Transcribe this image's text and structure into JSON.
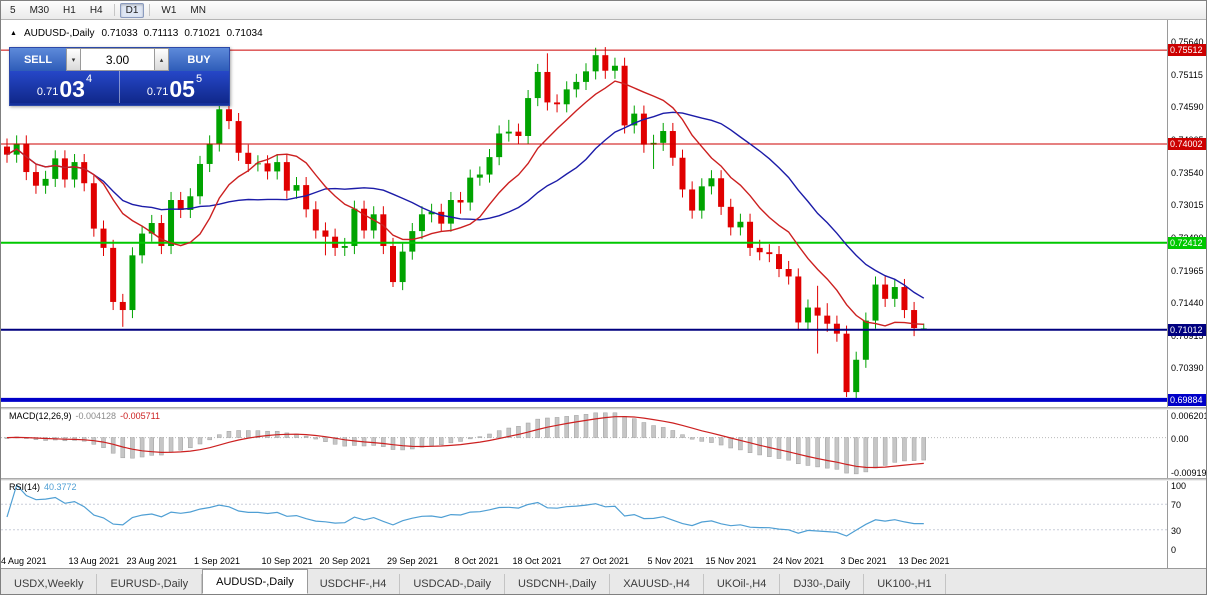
{
  "colors": {
    "bull": "#00a300",
    "bear": "#e00000",
    "ma_fast": "#cc2020",
    "ma_slow": "#1c1ca8",
    "macd_hist": "#c6c6c6",
    "macd_hist_border": "#a0a0a0",
    "macd_signal": "#cc2020",
    "rsi": "#4f9fd4",
    "guide": "#c9ced9"
  },
  "toolbar": {
    "items": [
      {
        "label": "5",
        "active": false,
        "divider_after": false
      },
      {
        "label": "M30",
        "active": false,
        "divider_after": false
      },
      {
        "label": "H1",
        "active": false,
        "divider_after": false
      },
      {
        "label": "H4",
        "active": false,
        "divider_after": true
      },
      {
        "label": "D1",
        "active": true,
        "divider_after": true
      },
      {
        "label": "W1",
        "active": false,
        "divider_after": false
      },
      {
        "label": "MN",
        "active": false,
        "divider_after": false
      }
    ]
  },
  "chart_header": {
    "icon": "▲",
    "title": "AUDUSD-,Daily",
    "open": "0.71033",
    "high": "0.71113",
    "low": "0.71021",
    "close": "0.71034"
  },
  "trade_widget": {
    "sell_label": "SELL",
    "buy_label": "BUY",
    "volume": "3.00",
    "volume_down_icon": "▾",
    "volume_up_icon": "▴",
    "sell_price": {
      "prefix": "0.71",
      "big": "03",
      "sup": "4"
    },
    "buy_price": {
      "prefix": "0.71",
      "big": "05",
      "sup": "5"
    }
  },
  "price_axis": {
    "labels": [
      {
        "text": "0.75640",
        "value": 0.7564
      },
      {
        "text": "0.75115",
        "value": 0.75115
      },
      {
        "text": "0.74590",
        "value": 0.7459
      },
      {
        "text": "0.74065",
        "value": 0.74065
      },
      {
        "text": "0.73540",
        "value": 0.7354
      },
      {
        "text": "0.73015",
        "value": 0.73015
      },
      {
        "text": "0.72490",
        "value": 0.7249
      },
      {
        "text": "0.71965",
        "value": 0.71965
      },
      {
        "text": "0.71440",
        "value": 0.7144
      },
      {
        "text": "0.70915",
        "value": 0.70915
      },
      {
        "text": "0.70390",
        "value": 0.7039
      },
      {
        "text": "0.69865",
        "value": 0.69865
      }
    ]
  },
  "levels": [
    {
      "value": 0.75512,
      "label": "0.75512",
      "color": "#cc0000",
      "line_width": 1
    },
    {
      "value": 0.74002,
      "label": "0.74002",
      "color": "#cc0000",
      "line_width": 1
    },
    {
      "value": 0.72412,
      "label": "0.72412",
      "color": "#00c800",
      "line_width": 2
    },
    {
      "value": 0.71012,
      "label": "0.71012",
      "color": "#00007f",
      "line_width": 2
    },
    {
      "value": 0.69884,
      "label": "0.69884",
      "color": "#0000c8",
      "line_width": 4
    }
  ],
  "macd_panel": {
    "name": "MACD(12,26,9)",
    "main_value": "-0.004128",
    "signal_value": "-0.005711",
    "fast": 12,
    "slow": 26,
    "signal": 9,
    "scale_max": 0.0062,
    "scale_min": -0.0092,
    "axis_labels": [
      {
        "text": "0.006201",
        "value": 0.006201
      },
      {
        "text": "0.00",
        "value": 0
      },
      {
        "text": "-0.00919",
        "value": -0.00919
      }
    ]
  },
  "rsi_panel": {
    "name": "RSI(14)",
    "value": "40.3772",
    "period": 14,
    "guides": [
      70,
      30
    ],
    "axis_labels": [
      {
        "text": "100",
        "value": 100
      },
      {
        "text": "70",
        "value": 70
      },
      {
        "text": "30",
        "value": 30
      },
      {
        "text": "0",
        "value": 0
      }
    ]
  },
  "x_axis": {
    "labels": [
      {
        "text": "4 Aug 2021",
        "index": 0
      },
      {
        "text": "13 Aug 2021",
        "index": 7
      },
      {
        "text": "23 Aug 2021",
        "index": 13
      },
      {
        "text": "1 Sep 2021",
        "index": 20
      },
      {
        "text": "10 Sep 2021",
        "index": 27
      },
      {
        "text": "20 Sep 2021",
        "index": 33
      },
      {
        "text": "29 Sep 2021",
        "index": 40
      },
      {
        "text": "8 Oct 2021",
        "index": 47
      },
      {
        "text": "18 Oct 2021",
        "index": 53
      },
      {
        "text": "27 Oct 2021",
        "index": 60
      },
      {
        "text": "5 Nov 2021",
        "index": 67
      },
      {
        "text": "15 Nov 2021",
        "index": 73
      },
      {
        "text": "24 Nov 2021",
        "index": 80
      },
      {
        "text": "3 Dec 2021",
        "index": 87
      },
      {
        "text": "13 Dec 2021",
        "index": 93
      }
    ]
  },
  "tabs": {
    "items": [
      "USDX,Weekly",
      "EURUSD-,Daily",
      "AUDUSD-,Daily",
      "USDCHF-,H4",
      "USDCAD-,Daily",
      "USDCNH-,Daily",
      "XAUUSD-,H4",
      "UKOil-,H4",
      "DJ30-,Daily",
      "UK100-,H1"
    ],
    "active_index": 2
  },
  "chart_data": {
    "type": "candlestick",
    "symbol": "AUDUSD-",
    "timeframe": "Daily",
    "ma_fast_period": 10,
    "ma_slow_period": 21,
    "price_range": {
      "max": 0.7598,
      "min": 0.6977
    },
    "candles": [
      [
        0.7396,
        0.7409,
        0.737,
        0.7383
      ],
      [
        0.7383,
        0.7414,
        0.737,
        0.7401
      ],
      [
        0.7401,
        0.7414,
        0.7342,
        0.7355
      ],
      [
        0.7355,
        0.7368,
        0.732,
        0.7333
      ],
      [
        0.7333,
        0.7357,
        0.732,
        0.7344
      ],
      [
        0.7344,
        0.739,
        0.7331,
        0.7377
      ],
      [
        0.7377,
        0.739,
        0.733,
        0.7343
      ],
      [
        0.7343,
        0.7384,
        0.733,
        0.7371
      ],
      [
        0.7371,
        0.7384,
        0.7324,
        0.7337
      ],
      [
        0.7337,
        0.735,
        0.7251,
        0.7264
      ],
      [
        0.7264,
        0.7277,
        0.722,
        0.7233
      ],
      [
        0.7233,
        0.7246,
        0.7133,
        0.7146
      ],
      [
        0.7146,
        0.7159,
        0.7106,
        0.7133
      ],
      [
        0.7133,
        0.7234,
        0.712,
        0.7221
      ],
      [
        0.7221,
        0.7269,
        0.7208,
        0.7256
      ],
      [
        0.7256,
        0.7286,
        0.7243,
        0.7273
      ],
      [
        0.7273,
        0.7286,
        0.7223,
        0.7236
      ],
      [
        0.7236,
        0.7323,
        0.7223,
        0.731
      ],
      [
        0.731,
        0.7323,
        0.7281,
        0.7294
      ],
      [
        0.7294,
        0.7329,
        0.7281,
        0.7316
      ],
      [
        0.7316,
        0.7381,
        0.7303,
        0.7368
      ],
      [
        0.7368,
        0.7414,
        0.7355,
        0.7401
      ],
      [
        0.7401,
        0.7478,
        0.7388,
        0.7456
      ],
      [
        0.7456,
        0.7469,
        0.7424,
        0.7437
      ],
      [
        0.7437,
        0.745,
        0.7373,
        0.7386
      ],
      [
        0.7386,
        0.7399,
        0.7355,
        0.7368
      ],
      [
        0.7368,
        0.7382,
        0.7356,
        0.7369
      ],
      [
        0.7369,
        0.7382,
        0.7343,
        0.7356
      ],
      [
        0.7356,
        0.7384,
        0.7343,
        0.7371
      ],
      [
        0.7371,
        0.7384,
        0.7312,
        0.7325
      ],
      [
        0.7325,
        0.7347,
        0.7312,
        0.7334
      ],
      [
        0.7334,
        0.7347,
        0.7282,
        0.7295
      ],
      [
        0.7295,
        0.7308,
        0.7248,
        0.7261
      ],
      [
        0.7261,
        0.7274,
        0.7221,
        0.7251
      ],
      [
        0.7251,
        0.7264,
        0.722,
        0.7233
      ],
      [
        0.7233,
        0.7249,
        0.722,
        0.7236
      ],
      [
        0.7236,
        0.7309,
        0.7223,
        0.7296
      ],
      [
        0.7296,
        0.7309,
        0.7248,
        0.7261
      ],
      [
        0.7261,
        0.73,
        0.7248,
        0.7287
      ],
      [
        0.7287,
        0.73,
        0.7223,
        0.7236
      ],
      [
        0.7236,
        0.7249,
        0.717,
        0.7178
      ],
      [
        0.7178,
        0.724,
        0.7165,
        0.7227
      ],
      [
        0.7227,
        0.7273,
        0.7214,
        0.726
      ],
      [
        0.726,
        0.73,
        0.7247,
        0.7287
      ],
      [
        0.7287,
        0.7304,
        0.7274,
        0.7291
      ],
      [
        0.7291,
        0.7304,
        0.7259,
        0.7272
      ],
      [
        0.7272,
        0.7323,
        0.7259,
        0.731
      ],
      [
        0.731,
        0.7323,
        0.7288,
        0.7306
      ],
      [
        0.7306,
        0.7359,
        0.7293,
        0.7346
      ],
      [
        0.7346,
        0.7364,
        0.7333,
        0.7351
      ],
      [
        0.7351,
        0.7392,
        0.7338,
        0.7379
      ],
      [
        0.7379,
        0.743,
        0.7366,
        0.7417
      ],
      [
        0.7417,
        0.7439,
        0.7404,
        0.742
      ],
      [
        0.742,
        0.7433,
        0.74,
        0.7413
      ],
      [
        0.7413,
        0.7487,
        0.74,
        0.7474
      ],
      [
        0.7474,
        0.7529,
        0.7461,
        0.7516
      ],
      [
        0.7516,
        0.7546,
        0.7454,
        0.7467
      ],
      [
        0.7467,
        0.748,
        0.7451,
        0.7464
      ],
      [
        0.7464,
        0.7501,
        0.7451,
        0.7488
      ],
      [
        0.7488,
        0.7513,
        0.7475,
        0.75
      ],
      [
        0.75,
        0.753,
        0.7487,
        0.7517
      ],
      [
        0.7517,
        0.7555,
        0.7504,
        0.7543
      ],
      [
        0.7543,
        0.7556,
        0.7505,
        0.7518
      ],
      [
        0.7518,
        0.7539,
        0.7505,
        0.7526
      ],
      [
        0.7526,
        0.7539,
        0.7417,
        0.743
      ],
      [
        0.743,
        0.7462,
        0.7417,
        0.7449
      ],
      [
        0.7449,
        0.7462,
        0.7386,
        0.7399
      ],
      [
        0.7399,
        0.7415,
        0.736,
        0.7402
      ],
      [
        0.7402,
        0.7434,
        0.7389,
        0.7421
      ],
      [
        0.7421,
        0.7434,
        0.7365,
        0.7378
      ],
      [
        0.7378,
        0.7391,
        0.7314,
        0.7327
      ],
      [
        0.7327,
        0.734,
        0.728,
        0.7293
      ],
      [
        0.7293,
        0.7345,
        0.728,
        0.7332
      ],
      [
        0.7332,
        0.7358,
        0.7319,
        0.7345
      ],
      [
        0.7345,
        0.7358,
        0.7286,
        0.7299
      ],
      [
        0.7299,
        0.7312,
        0.7253,
        0.7266
      ],
      [
        0.7266,
        0.7288,
        0.7253,
        0.7275
      ],
      [
        0.7275,
        0.7288,
        0.722,
        0.7233
      ],
      [
        0.7233,
        0.7246,
        0.7213,
        0.7226
      ],
      [
        0.7226,
        0.7239,
        0.721,
        0.7223
      ],
      [
        0.7223,
        0.7236,
        0.7186,
        0.7199
      ],
      [
        0.7199,
        0.7212,
        0.7174,
        0.7187
      ],
      [
        0.7187,
        0.72,
        0.71,
        0.7113
      ],
      [
        0.7113,
        0.715,
        0.71,
        0.7137
      ],
      [
        0.7137,
        0.7172,
        0.7063,
        0.7124
      ],
      [
        0.7124,
        0.7144,
        0.7098,
        0.7111
      ],
      [
        0.7111,
        0.7124,
        0.7082,
        0.7095
      ],
      [
        0.7095,
        0.7108,
        0.6993,
        0.7001
      ],
      [
        0.7001,
        0.7066,
        0.6988,
        0.7053
      ],
      [
        0.7053,
        0.7129,
        0.704,
        0.7116
      ],
      [
        0.7116,
        0.7187,
        0.7103,
        0.7174
      ],
      [
        0.7174,
        0.7187,
        0.7138,
        0.7151
      ],
      [
        0.7151,
        0.7183,
        0.7138,
        0.717
      ],
      [
        0.717,
        0.7183,
        0.712,
        0.7133
      ],
      [
        0.7133,
        0.7146,
        0.7091,
        0.7104
      ],
      [
        0.71033,
        0.71113,
        0.71021,
        0.71034
      ]
    ]
  }
}
